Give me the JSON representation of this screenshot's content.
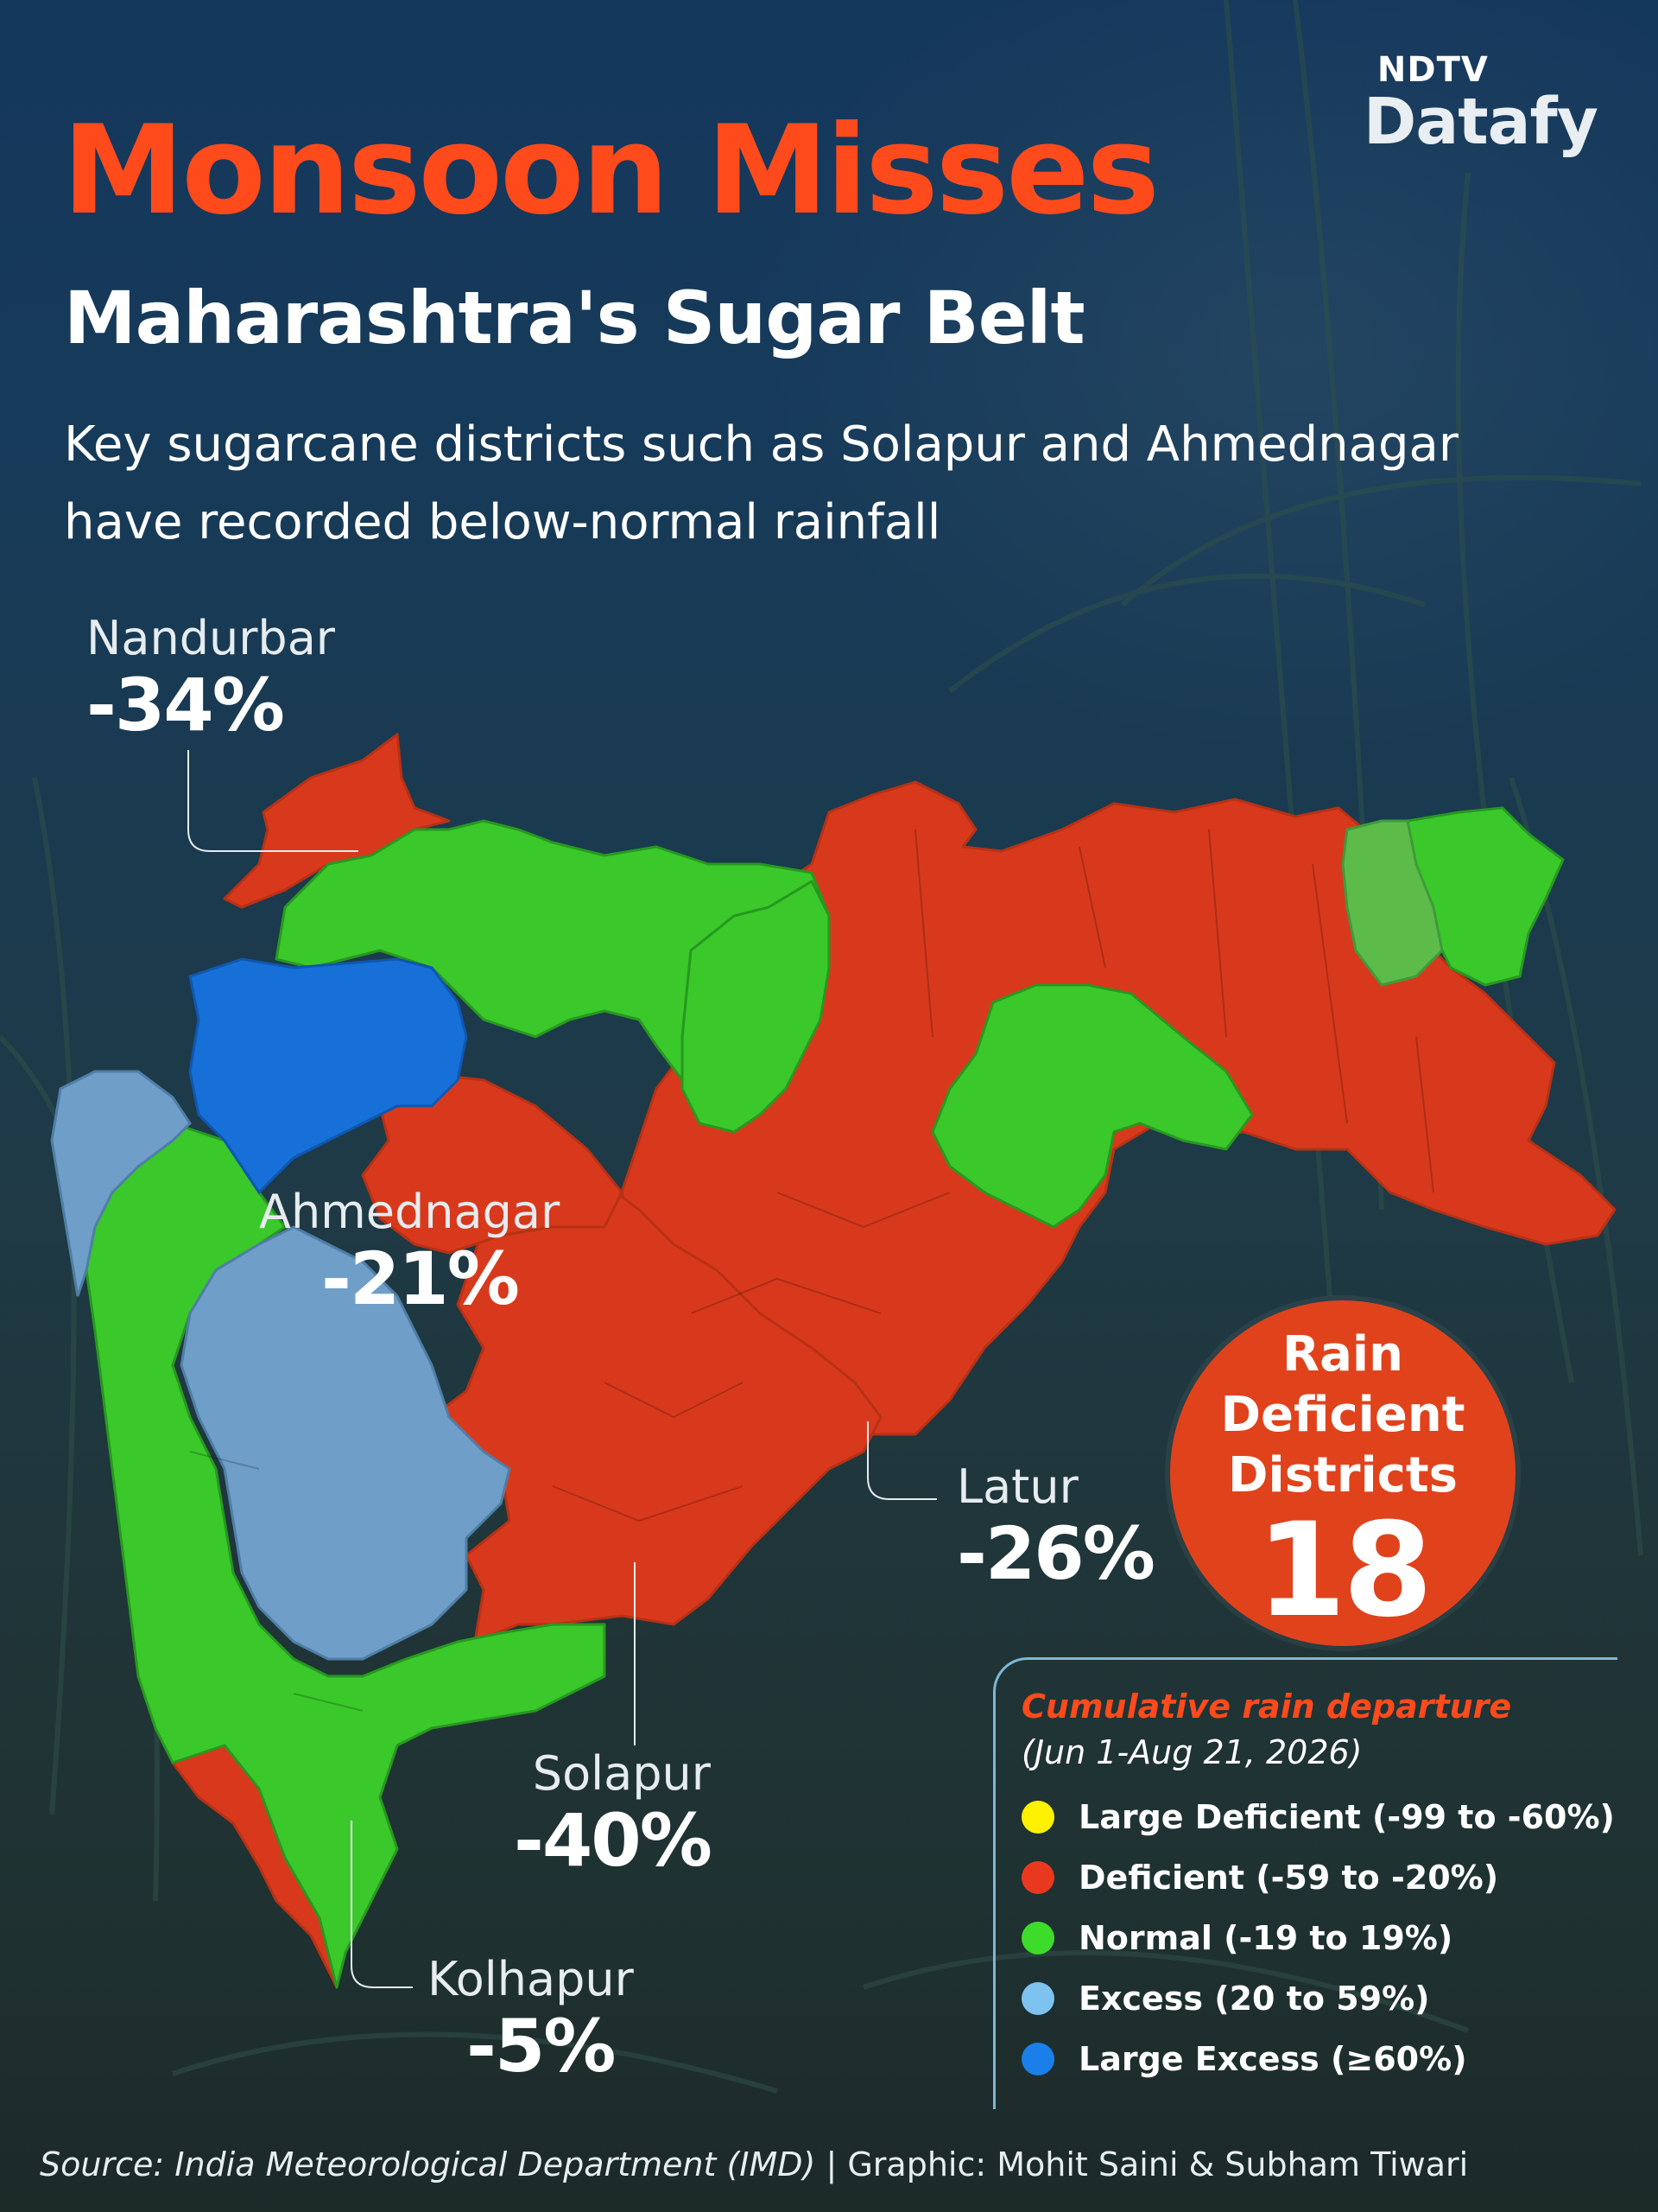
{
  "logo": {
    "top": "NDTV",
    "bottom": "Datafy"
  },
  "header": {
    "title": "Monsoon Misses",
    "subtitle": "Maharashtra's Sugar Belt",
    "description": "Key sugarcane districts such as Solapur and Ahmednagar have recorded below-normal rainfall"
  },
  "callouts": {
    "nandurbar": {
      "name": "Nandurbar",
      "value": "-34%"
    },
    "ahmednagar": {
      "name": "Ahmednagar",
      "value": "-21%"
    },
    "latur": {
      "name": "Latur",
      "value": "-26%"
    },
    "solapur": {
      "name": "Solapur",
      "value": "-40%"
    },
    "kolhapur": {
      "name": "Kolhapur",
      "value": "-5%"
    }
  },
  "badge": {
    "line1": "Rain",
    "line2": "Deficient",
    "line3": "Districts",
    "count": "18"
  },
  "legend": {
    "title": "Cumulative rain departure",
    "date_range": "(Jun 1-Aug 21, 2026)",
    "items": [
      {
        "label": "Large Deficient (-99 to -60%)",
        "color": "#fff200"
      },
      {
        "label": "Deficient (-59 to -20%)",
        "color": "#e8391f"
      },
      {
        "label": "Normal (-19 to 19%)",
        "color": "#3ddc2a"
      },
      {
        "label": "Excess (20 to 59%)",
        "color": "#7ec3f0"
      },
      {
        "label": "Large Excess (≥60%)",
        "color": "#1a7fe8"
      }
    ]
  },
  "colors": {
    "deficient": "#d8391c",
    "normal": "#3ac82a",
    "normal_light": "#5dbb4a",
    "excess": "#6f9fc8",
    "large_excess": "#1670d8",
    "title_orange": "#ff4a1c"
  },
  "source": {
    "text_italic": "Source: India Meteorological Department (IMD)",
    "separator": " | ",
    "credit": "Graphic: Mohit Saini & Subham Tiwari"
  }
}
